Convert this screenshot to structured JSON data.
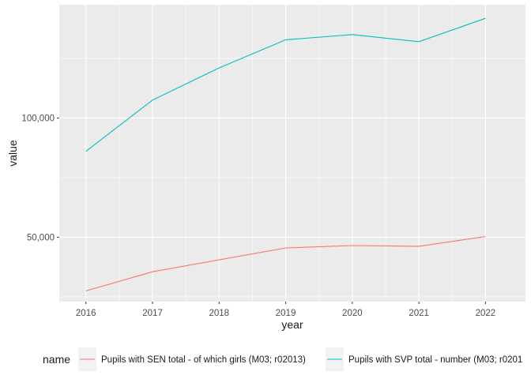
{
  "chart_data": {
    "type": "line",
    "xlabel": "year",
    "ylabel": "value",
    "x": [
      2016,
      2017,
      2018,
      2019,
      2020,
      2021,
      2022
    ],
    "x_ticks": [
      "2016",
      "2017",
      "2018",
      "2019",
      "2020",
      "2021",
      "2022"
    ],
    "y_ticks": [
      {
        "value": 50000,
        "label": "50,000"
      },
      {
        "value": 100000,
        "label": "100,000"
      }
    ],
    "xlim": [
      2015.6,
      2022.6
    ],
    "ylim": [
      23000,
      147500
    ],
    "grid": true,
    "legend": {
      "title": "name",
      "position": "bottom"
    },
    "series": [
      {
        "name": "Pupils with SEN total - of which girls (M03; r02013)",
        "color": "#F8766D",
        "values": [
          27500,
          35500,
          40500,
          45500,
          46500,
          46200,
          50300
        ]
      },
      {
        "name": "Pupils with SVP total - number (M03; r0201",
        "color": "#00BFC4",
        "values": [
          86000,
          107500,
          121000,
          132800,
          135000,
          132000,
          141800
        ]
      }
    ]
  }
}
